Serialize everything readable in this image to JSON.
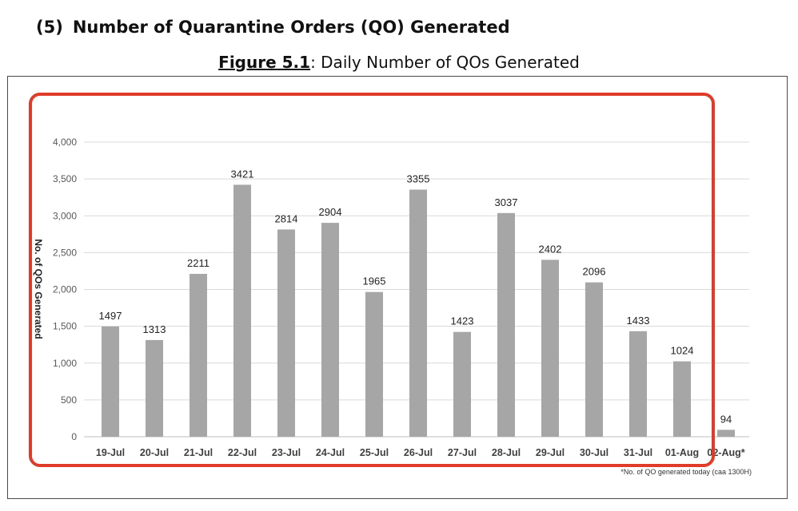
{
  "heading": {
    "number": "(5)",
    "title": "Number of Quarantine Orders (QO) Generated"
  },
  "caption": {
    "label": "Figure 5.1",
    "text": ": Daily Number of QOs Generated"
  },
  "footnote": "*No. of QO generated today (caa 1300H)",
  "colors": {
    "bar": "#a6a6a6",
    "grid": "#d9d9d9",
    "highlight": "#e03c2a"
  },
  "chart_data": {
    "type": "bar",
    "title": "Daily Number of QOs Generated",
    "ylabel": "No. of QOs Generated",
    "xlabel": "",
    "categories": [
      "19-Jul",
      "20-Jul",
      "21-Jul",
      "22-Jul",
      "23-Jul",
      "24-Jul",
      "25-Jul",
      "26-Jul",
      "27-Jul",
      "28-Jul",
      "29-Jul",
      "30-Jul",
      "31-Jul",
      "01-Aug",
      "02-Aug*"
    ],
    "values": [
      1497,
      1313,
      2211,
      3421,
      2814,
      2904,
      1965,
      3355,
      1423,
      3037,
      2402,
      2096,
      1433,
      1024,
      94
    ],
    "data_labels": [
      "1497",
      "1313",
      "2211",
      "3421",
      "2814",
      "2904",
      "1965",
      "3355",
      "1423",
      "3037",
      "2402",
      "2096",
      "1433",
      "1024",
      "94"
    ],
    "yticks": [
      0,
      500,
      1000,
      1500,
      2000,
      2500,
      3000,
      3500,
      4000
    ],
    "ytick_labels": [
      "0",
      "500",
      "1,000",
      "1,500",
      "2,000",
      "2,500",
      "3,000",
      "3,500",
      "4,000"
    ],
    "ylim": [
      0,
      4000
    ],
    "grid": true,
    "legend": "none"
  }
}
